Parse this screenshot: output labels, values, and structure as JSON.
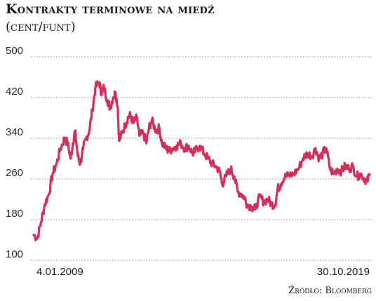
{
  "title": "Kontrakty terminowe na miedź",
  "subtitle": "(cent/funt)",
  "source": "Źródło: Bloomberg",
  "chart_data": {
    "type": "line",
    "title": "Kontrakty terminowe na miedź",
    "ylabel": "(cent/funt)",
    "ylim": [
      100,
      500
    ],
    "yticks": [
      100,
      180,
      260,
      340,
      420,
      500
    ],
    "xlim": [
      "2009-01-04",
      "2019-10-30"
    ],
    "x_tick_labels": [
      "4.01.2009",
      "30.10.2019"
    ],
    "grid": "horizontal",
    "line_color": "#d62e5a",
    "series": [
      {
        "x": [
          "2009-01-04",
          "2009-02-15",
          "2009-04-01",
          "2009-05-15",
          "2009-07-01",
          "2009-08-15",
          "2009-10-01",
          "2009-11-15",
          "2010-01-04",
          "2010-02-08",
          "2010-03-15",
          "2010-04-10",
          "2010-05-06",
          "2010-06-07",
          "2010-07-05",
          "2010-08-10",
          "2010-09-15",
          "2010-10-20",
          "2010-11-25",
          "2010-12-31",
          "2011-02-14",
          "2011-03-10",
          "2011-04-10",
          "2011-05-20",
          "2011-06-20",
          "2011-07-28",
          "2011-08-25",
          "2011-09-20",
          "2011-10-05",
          "2011-11-10",
          "2011-12-15",
          "2012-01-15",
          "2012-02-15",
          "2012-03-20",
          "2012-04-30",
          "2012-06-01",
          "2012-07-15",
          "2012-08-20",
          "2012-09-20",
          "2012-10-25",
          "2012-12-10",
          "2013-01-20",
          "2013-02-20",
          "2013-04-10",
          "2013-05-15",
          "2013-06-25",
          "2013-08-10",
          "2013-10-01",
          "2013-11-15",
          "2013-12-31",
          "2014-02-15",
          "2014-03-20",
          "2014-05-10",
          "2014-07-01",
          "2014-08-20",
          "2014-10-01",
          "2014-11-15",
          "2014-12-31",
          "2015-01-31",
          "2015-03-15",
          "2015-05-10",
          "2015-06-20",
          "2015-08-01",
          "2015-09-15",
          "2015-10-15",
          "2015-11-20",
          "2016-01-15",
          "2016-02-20",
          "2016-04-15",
          "2016-06-01",
          "2016-07-20",
          "2016-09-01",
          "2016-10-15",
          "2016-11-11",
          "2016-12-20",
          "2017-02-10",
          "2017-04-01",
          "2017-05-20",
          "2017-07-15",
          "2017-09-05",
          "2017-10-25",
          "2017-12-20",
          "2018-01-31",
          "2018-03-15",
          "2018-04-25",
          "2018-06-07",
          "2018-07-20",
          "2018-09-01",
          "2018-10-15",
          "2018-12-01",
          "2019-01-15",
          "2019-03-01",
          "2019-04-15",
          "2019-05-31",
          "2019-07-15",
          "2019-08-31",
          "2019-09-30",
          "2019-10-30"
        ],
        "values": [
          150,
          143,
          175,
          210,
          230,
          270,
          290,
          320,
          340,
          330,
          300,
          330,
          355,
          305,
          290,
          320,
          340,
          355,
          395,
          440,
          450,
          430,
          440,
          415,
          400,
          420,
          430,
          400,
          335,
          350,
          365,
          380,
          385,
          370,
          380,
          345,
          350,
          330,
          360,
          375,
          355,
          360,
          330,
          320,
          315,
          320,
          325,
          330,
          320,
          325,
          310,
          315,
          325,
          310,
          300,
          290,
          285,
          275,
          250,
          265,
          280,
          265,
          235,
          230,
          225,
          210,
          205,
          200,
          225,
          215,
          220,
          210,
          210,
          240,
          250,
          270,
          265,
          270,
          280,
          300,
          310,
          305,
          320,
          300,
          310,
          320,
          280,
          270,
          280,
          275,
          285,
          280,
          285,
          265,
          270,
          260,
          255,
          268
        ]
      }
    ]
  }
}
